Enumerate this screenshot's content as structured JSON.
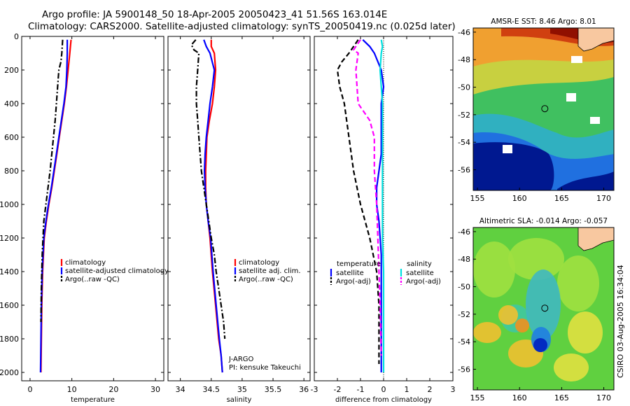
{
  "header": {
    "line1": "Argo profile: JA 5900148_50 18-Apr-2005 20050423_41 51.56S 163.014E",
    "line2": "Climatology: CARS2000. Satellite-adjusted climatology: synTS_20050419.nc (0.025d later)"
  },
  "stamp": "CSIRO 03-Aug-2005 16:34:04",
  "colors": {
    "climatology": "#ff0000",
    "satellite": "#0000ff",
    "argo": "#000000",
    "sal_satellite": "#00e0e0",
    "sal_argo": "#ff00ff",
    "land": "#f8c8a0"
  },
  "chart_data": [
    {
      "type": "line",
      "id": "temperature",
      "xlabel": "temperature",
      "xlim": [
        -2,
        32
      ],
      "xticks": [
        0,
        10,
        20,
        30
      ],
      "ylim": [
        2050,
        0
      ],
      "yticks": [
        0,
        200,
        400,
        600,
        800,
        1000,
        1200,
        1400,
        1600,
        1800,
        2000
      ],
      "series": [
        {
          "name": "climatology",
          "color": "#ff0000",
          "style": "solid",
          "x": [
            9.8,
            9.5,
            9.1,
            8.7,
            8.2,
            7.6,
            7.0,
            6.4,
            5.8,
            5.2,
            4.5,
            3.9,
            3.4,
            3.0,
            2.8,
            2.7,
            2.6
          ],
          "y": [
            20,
            100,
            200,
            300,
            400,
            500,
            600,
            700,
            800,
            900,
            1000,
            1100,
            1200,
            1400,
            1600,
            1800,
            2000
          ]
        },
        {
          "name": "satellite-adjusted climatology",
          "color": "#0000ff",
          "style": "solid",
          "x": [
            8.9,
            8.9,
            8.8,
            8.6,
            8.1,
            7.5,
            6.9,
            6.3,
            5.7,
            5.1,
            4.4,
            3.8,
            3.3,
            2.9,
            2.7,
            2.6,
            2.5
          ],
          "y": [
            20,
            100,
            200,
            300,
            400,
            500,
            600,
            700,
            800,
            900,
            1000,
            1100,
            1200,
            1400,
            1600,
            1800,
            2000
          ]
        },
        {
          "name": "Argo(..raw -QC)",
          "color": "#000000",
          "style": "dashdot",
          "x": [
            7.8,
            7.6,
            7.4,
            6.9,
            6.6,
            6.3,
            6.0,
            5.6,
            5.2,
            4.8,
            4.3,
            3.8,
            3.3,
            2.9,
            2.7,
            2.6
          ],
          "y": [
            20,
            100,
            150,
            200,
            300,
            400,
            500,
            600,
            700,
            800,
            900,
            1000,
            1100,
            1300,
            1500,
            1700
          ]
        }
      ],
      "legend": [
        "climatology",
        "satellite-adjusted climatology",
        "Argo(..raw -QC)"
      ]
    },
    {
      "type": "line",
      "id": "salinity",
      "xlabel": "salinity",
      "xlim": [
        33.8,
        36.1
      ],
      "xticks": [
        34,
        34.5,
        35,
        35.5,
        36
      ],
      "ylim": [
        2050,
        0
      ],
      "yticks": [
        0,
        200,
        400,
        600,
        800,
        1000,
        1200,
        1400,
        1600,
        1800,
        2000
      ],
      "series": [
        {
          "name": "climatology",
          "color": "#ff0000",
          "style": "solid",
          "x": [
            34.5,
            34.5,
            34.55,
            34.57,
            34.55,
            34.52,
            34.47,
            34.43,
            34.42,
            34.41,
            34.41,
            34.42,
            34.45,
            34.48,
            34.52,
            34.57,
            34.62,
            34.66,
            34.68
          ],
          "y": [
            20,
            60,
            100,
            200,
            300,
            400,
            500,
            600,
            700,
            800,
            900,
            1000,
            1100,
            1200,
            1400,
            1600,
            1800,
            1900,
            2000
          ]
        },
        {
          "name": "satellite adj. clim.",
          "color": "#0000ff",
          "style": "solid",
          "x": [
            34.38,
            34.42,
            34.48,
            34.55,
            34.52,
            34.48,
            34.45,
            34.42,
            34.4,
            34.39,
            34.4,
            34.42,
            34.45,
            34.49,
            34.53,
            34.58,
            34.63,
            34.66,
            34.68
          ],
          "y": [
            20,
            60,
            100,
            200,
            300,
            400,
            500,
            600,
            700,
            800,
            900,
            1000,
            1100,
            1200,
            1400,
            1600,
            1800,
            1900,
            2000
          ]
        },
        {
          "name": "Argo(..raw -QC)",
          "color": "#000000",
          "style": "dashdot",
          "x": [
            34.25,
            34.18,
            34.22,
            34.3,
            34.28,
            34.26,
            34.26,
            34.28,
            34.3,
            34.32,
            34.34,
            34.38,
            34.42,
            34.46,
            34.5,
            34.55,
            34.58,
            34.62,
            34.66,
            34.7,
            34.72
          ],
          "y": [
            20,
            50,
            80,
            100,
            200,
            300,
            400,
            500,
            600,
            700,
            800,
            900,
            1000,
            1100,
            1200,
            1300,
            1400,
            1500,
            1600,
            1700,
            1800
          ]
        }
      ],
      "legend": [
        "climatology",
        "satellite adj. clim.",
        "Argo(..raw -QC)"
      ],
      "annotation": [
        "J-ARGO",
        "PI: kensuke Takeuchi"
      ]
    },
    {
      "type": "line",
      "id": "difference",
      "xlabel": "difference from climatology",
      "xlim": [
        -3,
        3
      ],
      "xticks": [
        -3,
        -2,
        -1,
        0,
        1,
        2,
        3
      ],
      "ylim": [
        2050,
        0
      ],
      "yticks": [
        0,
        200,
        400,
        600,
        800,
        1000,
        1200,
        1400,
        1600,
        1800,
        2000
      ],
      "zero_line": true,
      "series": [
        {
          "name": "temperature satellite",
          "color": "#0000ff",
          "style": "solid",
          "x": [
            -0.9,
            -0.6,
            -0.4,
            -0.1,
            0.0,
            -0.1,
            -0.1,
            -0.1,
            -0.1,
            -0.2,
            -0.3,
            -0.3,
            -0.2,
            -0.1,
            -0.1,
            -0.1
          ],
          "y": [
            20,
            60,
            100,
            200,
            300,
            400,
            500,
            600,
            700,
            800,
            900,
            1000,
            1100,
            1300,
            1600,
            2000
          ]
        },
        {
          "name": "temperature Argo(-adj)",
          "color": "#000000",
          "style": "dashed",
          "x": [
            -1.1,
            -1.5,
            -1.8,
            -2.0,
            -1.9,
            -1.7,
            -1.6,
            -1.5,
            -1.4,
            -1.3,
            -1.0,
            -0.8,
            -0.6,
            -0.3,
            -0.2,
            -0.2
          ],
          "y": [
            20,
            100,
            150,
            200,
            300,
            400,
            500,
            600,
            700,
            800,
            1000,
            1100,
            1200,
            1400,
            1600,
            1950
          ]
        },
        {
          "name": "salinity satellite",
          "color": "#00e0e0",
          "style": "solid",
          "x": [
            -0.1,
            -0.05,
            -0.1,
            -0.15,
            -0.1,
            -0.05,
            -0.05,
            -0.05,
            -0.05,
            -0.05,
            -0.05,
            0.0,
            0.0,
            0.0
          ],
          "y": [
            20,
            60,
            100,
            200,
            300,
            400,
            500,
            600,
            800,
            1000,
            1200,
            1400,
            1700,
            2000
          ]
        },
        {
          "name": "salinity Argo(-adj)",
          "color": "#ff00ff",
          "style": "dashed",
          "x": [
            -1.0,
            -1.3,
            -1.1,
            -1.2,
            -1.1,
            -0.6,
            -0.4,
            -0.4,
            -0.3,
            -0.25,
            -0.2,
            -0.15,
            -0.1
          ],
          "y": [
            20,
            80,
            100,
            200,
            400,
            500,
            600,
            800,
            1000,
            1200,
            1400,
            1600,
            1900
          ]
        }
      ],
      "legend_left": {
        "title": "temperature",
        "items": [
          "satellite",
          "Argo(-adj)"
        ]
      },
      "legend_right": {
        "title": "salinity",
        "items": [
          "satellite",
          "Argo(-adj)"
        ]
      }
    },
    {
      "type": "heatmap",
      "id": "sst-map",
      "title": "AMSR-E SST: 8.46 Argo: 8.01",
      "xlim": [
        154.5,
        171.2
      ],
      "ylim": [
        -57.5,
        -45.7
      ],
      "xticks": [
        155,
        160,
        165,
        170
      ],
      "yticks": [
        -46,
        -48,
        -50,
        -52,
        -54,
        -56
      ],
      "profile_marker": {
        "lon": 163.0,
        "lat": -51.56
      }
    },
    {
      "type": "heatmap",
      "id": "sla-map",
      "title": "Altimetric SLA: -0.014 Argo: -0.057",
      "xlim": [
        154.5,
        171.2
      ],
      "ylim": [
        -57.5,
        -45.7
      ],
      "xticks": [
        155,
        160,
        165,
        170
      ],
      "yticks": [
        -46,
        -48,
        -50,
        -52,
        -54,
        -56
      ],
      "profile_marker": {
        "lon": 163.0,
        "lat": -51.56
      }
    }
  ]
}
